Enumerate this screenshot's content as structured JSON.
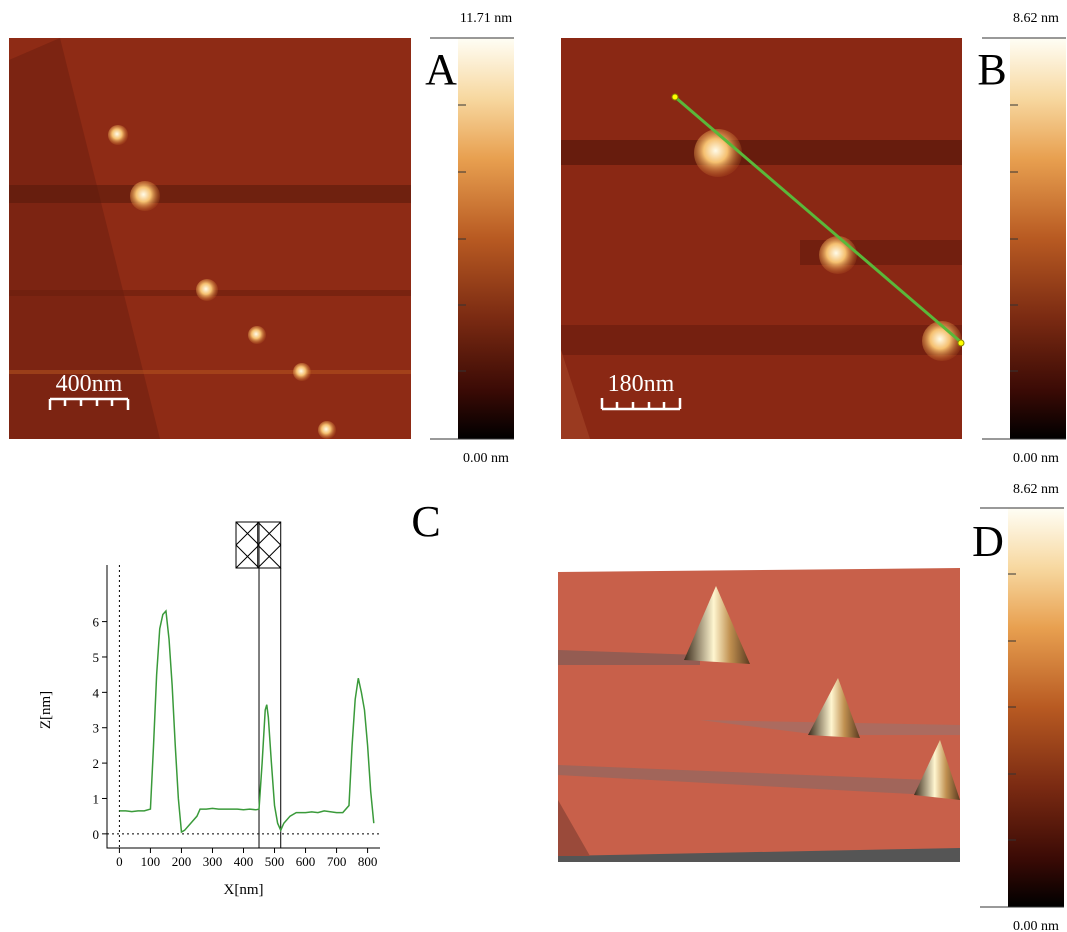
{
  "panels": {
    "A": {
      "label": "A",
      "scale_bar": "400nm",
      "colorbar_max": "11.71 nm",
      "colorbar_min": "0.00 nm"
    },
    "B": {
      "label": "B",
      "scale_bar": "180nm",
      "colorbar_max": "8.62 nm",
      "colorbar_min": "0.00 nm"
    },
    "C": {
      "label": "C"
    },
    "D": {
      "label": "D",
      "colorbar_max": "8.62 nm",
      "colorbar_min": "0.00 nm"
    }
  },
  "chart_data": {
    "type": "line",
    "x_label": "X[nm]",
    "y_label": "Z[nm]",
    "x": [
      0,
      20,
      40,
      60,
      80,
      100,
      110,
      120,
      130,
      140,
      150,
      160,
      170,
      180,
      190,
      200,
      210,
      230,
      250,
      260,
      280,
      300,
      320,
      340,
      360,
      380,
      400,
      420,
      440,
      450,
      460,
      470,
      475,
      480,
      490,
      500,
      510,
      520,
      530,
      550,
      570,
      600,
      620,
      640,
      660,
      700,
      720,
      740,
      750,
      760,
      770,
      780,
      790,
      800,
      810,
      820
    ],
    "series": [
      {
        "color": "#3a9a3a",
        "values": [
          0.65,
          0.65,
          0.63,
          0.65,
          0.65,
          0.7,
          2.5,
          4.5,
          5.8,
          6.2,
          6.3,
          5.5,
          4.2,
          2.5,
          1.0,
          0.05,
          0.1,
          0.3,
          0.5,
          0.7,
          0.7,
          0.72,
          0.7,
          0.7,
          0.7,
          0.7,
          0.68,
          0.7,
          0.68,
          0.7,
          2.0,
          3.5,
          3.65,
          3.3,
          2.0,
          0.8,
          0.3,
          0.1,
          0.3,
          0.5,
          0.6,
          0.6,
          0.62,
          0.6,
          0.65,
          0.6,
          0.6,
          0.8,
          2.5,
          3.8,
          4.4,
          4.0,
          3.5,
          2.5,
          1.2,
          0.3
        ]
      }
    ],
    "cursors": [
      450,
      520
    ],
    "xlim": [
      -40,
      840
    ],
    "ylim": [
      -0.4,
      7.6
    ],
    "xticks": [
      0,
      100,
      200,
      300,
      400,
      500,
      600,
      700,
      800
    ],
    "yticks": [
      0,
      1,
      2,
      3,
      4,
      5,
      6
    ]
  }
}
